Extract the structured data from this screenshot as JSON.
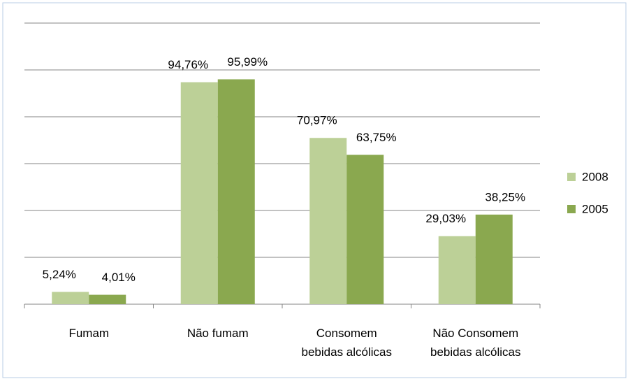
{
  "chart_data": {
    "type": "bar",
    "categories": [
      "Fumam",
      "Não fumam",
      "Consomem bebidas alcólicas",
      "Não Consomem bebidas alcólicas"
    ],
    "series": [
      {
        "name": "2008",
        "color": "#bcd097",
        "values": [
          5.24,
          94.76,
          70.97,
          29.03
        ],
        "value_labels": [
          "5,24%",
          "94,76%",
          "70,97%",
          "29,03%"
        ]
      },
      {
        "name": "2005",
        "color": "#8aa84f",
        "values": [
          4.01,
          95.99,
          63.75,
          38.25
        ],
        "value_labels": [
          "4,01%",
          "95,99%",
          "63,75%",
          "38,25%"
        ]
      }
    ],
    "ylim": [
      0,
      120
    ],
    "yticks": [
      0,
      20,
      40,
      60,
      80,
      100,
      120
    ],
    "grid": true,
    "legend": "right"
  }
}
